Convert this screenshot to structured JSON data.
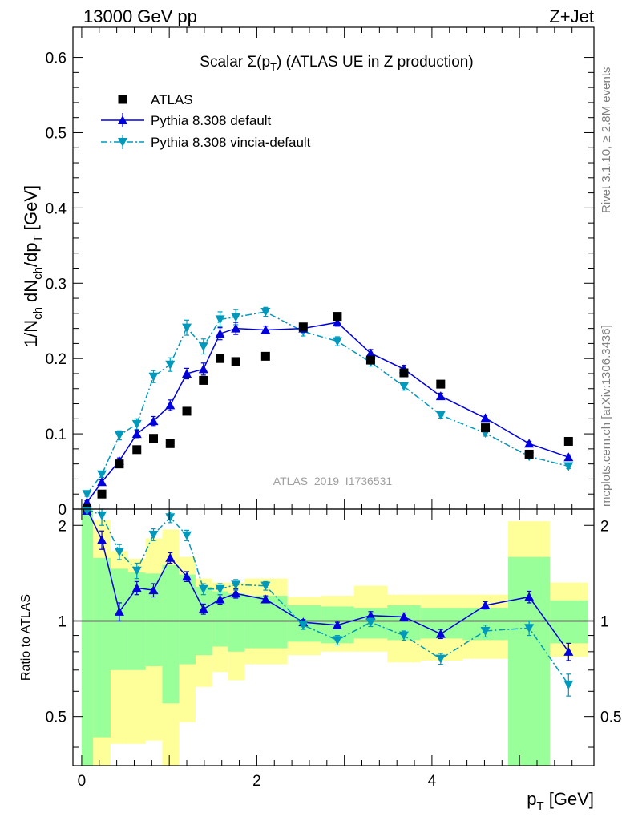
{
  "header": {
    "left": "13000 GeV pp",
    "right": "Z+Jet"
  },
  "side_labels": {
    "rivet": "Rivet 3.1.10, ≥ 2.8M events",
    "mcplots": "mcplots.cern.ch [arXiv:1306.3436]"
  },
  "plot_title": "Scalar Σ(p_T) (ATLAS UE in Z production)",
  "analysis_label": "ATLAS_2019_I1736531",
  "colors": {
    "atlas": "#000000",
    "pythia_default": "#0000dd",
    "pythia_vincia": "#0099bb",
    "band_inner": "#99ff99",
    "band_outer": "#ffff99"
  },
  "chart_data": [
    {
      "type": "scatter",
      "panel": "main",
      "xlabel": "p_T [GeV]",
      "ylabel": "1/N_ch dN_ch/dp_T [GeV]",
      "xlim": [
        -0.1,
        5.85
      ],
      "ylim": [
        0,
        0.64
      ],
      "y_ticks": [
        "0",
        "0.1",
        "0.2",
        "0.3",
        "0.4",
        "0.5",
        "0.6"
      ],
      "x": [
        0.06,
        0.23,
        0.43,
        0.63,
        0.82,
        1.01,
        1.2,
        1.39,
        1.58,
        1.76,
        2.1,
        2.53,
        2.92,
        3.3,
        3.68,
        4.1,
        4.61,
        5.11,
        5.56
      ],
      "legend_position": "top-left",
      "series": [
        {
          "name": "ATLAS",
          "marker": "square",
          "values": [
            0.001,
            0.02,
            0.06,
            0.079,
            0.094,
            0.087,
            0.13,
            0.171,
            0.2,
            0.196,
            0.203,
            0.242,
            0.256,
            0.198,
            0.181,
            0.166,
            0.108,
            0.073,
            0.09
          ],
          "errors": [
            0,
            0,
            0,
            0,
            0,
            0,
            0,
            0,
            0,
            0,
            0,
            0,
            0,
            0,
            0,
            0,
            0,
            0,
            0
          ]
        },
        {
          "name": "Pythia 8.308 default",
          "marker": "triangle-up",
          "line": "solid",
          "values": [
            0.009,
            0.036,
            0.064,
            0.1,
            0.117,
            0.138,
            0.18,
            0.186,
            0.233,
            0.24,
            0.238,
            0.24,
            0.248,
            0.207,
            0.186,
            0.15,
            0.121,
            0.087,
            0.069
          ],
          "errors": [
            0.002,
            0.003,
            0.004,
            0.005,
            0.006,
            0.007,
            0.007,
            0.008,
            0.008,
            0.008,
            0.005,
            0.005,
            0.005,
            0.005,
            0.005,
            0.004,
            0.004,
            0.003,
            0.003
          ]
        },
        {
          "name": "Pythia 8.308 vincia-default",
          "marker": "triangle-down",
          "line": "dash-dot",
          "values": [
            0.02,
            0.046,
            0.098,
            0.113,
            0.176,
            0.192,
            0.241,
            0.216,
            0.252,
            0.255,
            0.262,
            0.236,
            0.223,
            0.195,
            0.163,
            0.125,
            0.101,
            0.07,
            0.057
          ],
          "errors": [
            0.003,
            0.004,
            0.006,
            0.007,
            0.008,
            0.009,
            0.01,
            0.01,
            0.01,
            0.01,
            0.006,
            0.006,
            0.006,
            0.005,
            0.005,
            0.004,
            0.004,
            0.003,
            0.003
          ]
        }
      ]
    },
    {
      "type": "line",
      "panel": "ratio",
      "ylabel": "Ratio to ATLAS",
      "xlim": [
        -0.1,
        5.85
      ],
      "ylim": [
        0.35,
        2.25
      ],
      "x_ticks": [
        "0",
        "2",
        "4"
      ],
      "y_ticks": [
        "0.5",
        "1",
        "2"
      ],
      "reference_line": 1,
      "x": [
        0.06,
        0.23,
        0.43,
        0.63,
        0.82,
        1.01,
        1.2,
        1.39,
        1.58,
        1.76,
        2.1,
        2.53,
        2.92,
        3.3,
        3.68,
        4.1,
        4.61,
        5.11,
        5.56
      ],
      "bands": {
        "edges": [
          0,
          0.13,
          0.33,
          0.53,
          0.73,
          0.92,
          1.11,
          1.3,
          1.49,
          1.67,
          1.86,
          2.35,
          2.73,
          3.11,
          3.49,
          3.87,
          4.35,
          4.87,
          5.35,
          5.78
        ],
        "inner_low": [
          0.35,
          0.43,
          0.7,
          0.7,
          0.72,
          0.55,
          0.73,
          0.78,
          0.83,
          0.8,
          0.82,
          0.86,
          0.85,
          0.88,
          0.87,
          0.88,
          0.87,
          0.35,
          0.85
        ],
        "inner_high": [
          2.25,
          1.58,
          1.46,
          1.42,
          1.41,
          1.5,
          1.4,
          1.28,
          1.24,
          1.22,
          1.2,
          1.12,
          1.11,
          1.1,
          1.12,
          1.1,
          1.1,
          1.59,
          1.16
        ],
        "outer_low": [
          0.35,
          0.35,
          0.41,
          0.41,
          0.42,
          0.35,
          0.48,
          0.62,
          0.69,
          0.65,
          0.73,
          0.78,
          0.8,
          0.8,
          0.74,
          0.75,
          0.76,
          0.35,
          0.77
        ],
        "outer_high": [
          2.25,
          2.08,
          1.66,
          1.57,
          1.82,
          1.94,
          1.59,
          1.36,
          1.32,
          1.32,
          1.36,
          1.19,
          1.2,
          1.29,
          1.21,
          1.21,
          1.21,
          2.06,
          1.32
        ]
      },
      "series": [
        {
          "name": "Pythia 8.308 default",
          "marker": "triangle-up",
          "line": "solid",
          "values": [
            2.5,
            1.8,
            1.07,
            1.27,
            1.25,
            1.58,
            1.38,
            1.09,
            1.17,
            1.22,
            1.17,
            0.99,
            0.97,
            1.04,
            1.03,
            0.91,
            1.12,
            1.19,
            0.8
          ],
          "errors": [
            0,
            0.12,
            0.07,
            0.06,
            0.06,
            0.06,
            0.05,
            0.04,
            0.04,
            0.04,
            0.03,
            0.02,
            0.02,
            0.03,
            0.03,
            0.03,
            0.03,
            0.05,
            0.05
          ]
        },
        {
          "name": "Pythia 8.308 vincia-default",
          "marker": "triangle-down",
          "line": "dash-dot",
          "values": [
            2.5,
            2.15,
            1.65,
            1.44,
            1.87,
            2.12,
            1.86,
            1.26,
            1.26,
            1.3,
            1.29,
            0.97,
            0.87,
            0.99,
            0.9,
            0.76,
            0.93,
            0.95,
            0.63
          ],
          "errors": [
            0,
            0.15,
            0.09,
            0.08,
            0.08,
            0.08,
            0.07,
            0.05,
            0.05,
            0.05,
            0.04,
            0.03,
            0.03,
            0.03,
            0.03,
            0.03,
            0.04,
            0.05,
            0.05
          ]
        }
      ]
    }
  ]
}
